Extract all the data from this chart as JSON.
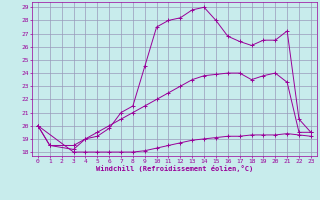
{
  "xlabel": "Windchill (Refroidissement éolien,°C)",
  "bg_color": "#c8ecec",
  "line_color": "#990099",
  "grid_color": "#9999bb",
  "xlim": [
    -0.5,
    23.5
  ],
  "ylim": [
    17.7,
    29.4
  ],
  "yticks": [
    18,
    19,
    20,
    21,
    22,
    23,
    24,
    25,
    26,
    27,
    28,
    29
  ],
  "xticks": [
    0,
    1,
    2,
    3,
    4,
    5,
    6,
    7,
    8,
    9,
    10,
    11,
    12,
    13,
    14,
    15,
    16,
    17,
    18,
    19,
    20,
    21,
    22,
    23
  ],
  "line1": {
    "x": [
      0,
      1,
      3,
      4,
      5,
      6,
      7,
      8,
      9,
      10,
      11,
      12,
      13,
      14,
      15,
      16,
      17,
      18,
      19,
      20,
      21,
      22,
      23
    ],
    "y": [
      20,
      18.5,
      18.2,
      19.0,
      19.2,
      19.8,
      21.0,
      21.5,
      24.5,
      27.5,
      28.0,
      28.2,
      28.8,
      29.0,
      28.0,
      26.8,
      26.4,
      26.1,
      26.5,
      26.5,
      27.2,
      20.5,
      19.5
    ]
  },
  "line2": {
    "x": [
      0,
      1,
      3,
      4,
      5,
      6,
      7,
      8,
      9,
      10,
      11,
      12,
      13,
      14,
      15,
      16,
      17,
      18,
      19,
      20,
      21,
      22,
      23
    ],
    "y": [
      20,
      18.5,
      18.5,
      19.0,
      19.5,
      20.0,
      20.5,
      21.0,
      21.5,
      22.0,
      22.5,
      23.0,
      23.5,
      23.8,
      23.9,
      24.0,
      24.0,
      23.5,
      23.8,
      24.0,
      23.3,
      19.5,
      19.5
    ]
  },
  "line3": {
    "x": [
      0,
      3,
      4,
      5,
      6,
      7,
      8,
      9,
      10,
      11,
      12,
      13,
      14,
      15,
      16,
      17,
      18,
      19,
      20,
      21,
      22,
      23
    ],
    "y": [
      20,
      18.0,
      18.0,
      18.0,
      18.0,
      18.0,
      18.0,
      18.1,
      18.3,
      18.5,
      18.7,
      18.9,
      19.0,
      19.1,
      19.2,
      19.2,
      19.3,
      19.3,
      19.3,
      19.4,
      19.3,
      19.2
    ]
  }
}
